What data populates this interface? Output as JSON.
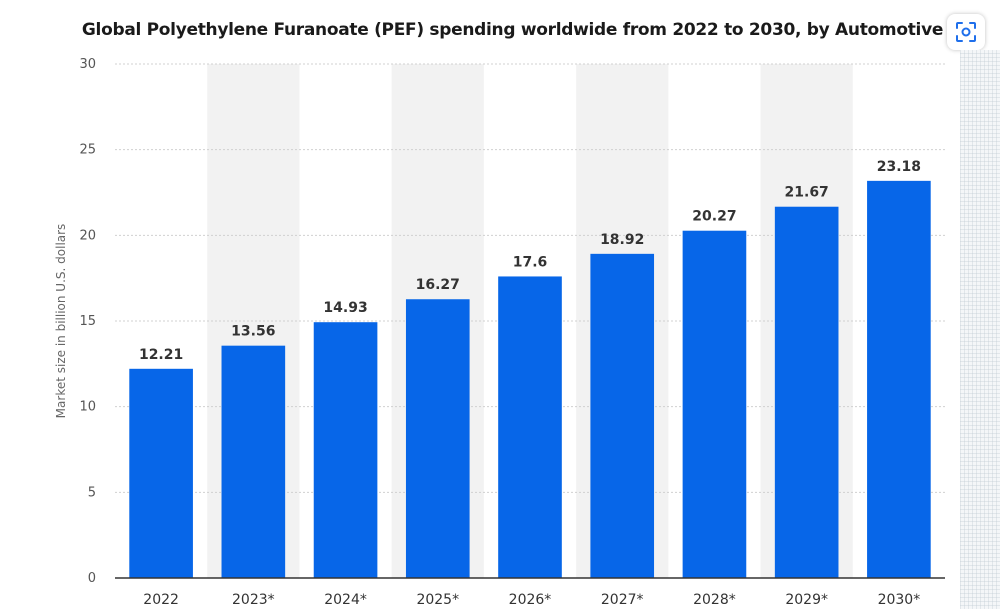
{
  "chart_data": {
    "type": "bar",
    "title": "Global Polyethylene Furanoate (PEF) spending worldwide from 2022 to 2030, by Automotive",
    "xlabel": "",
    "ylabel": "Market size in billion U.S. dollars",
    "categories": [
      "2022",
      "2023*",
      "2024*",
      "2025*",
      "2026*",
      "2027*",
      "2028*",
      "2029*",
      "2030*"
    ],
    "values": [
      12.21,
      13.56,
      14.93,
      16.27,
      17.6,
      18.92,
      20.27,
      21.67,
      23.18
    ],
    "value_labels": [
      "12.21",
      "13.56",
      "14.93",
      "16.27",
      "17.6",
      "18.92",
      "20.27",
      "21.67",
      "23.18"
    ],
    "ylim": [
      0,
      30
    ],
    "yticks": [
      "0",
      "5",
      "10",
      "15",
      "20",
      "25",
      "30"
    ],
    "grid": true,
    "legend": "none",
    "bar_color": "#0766e8",
    "band_color": "#f2f2f2"
  },
  "toolbar": {
    "zoom_icon": "zoom-scan-icon"
  }
}
